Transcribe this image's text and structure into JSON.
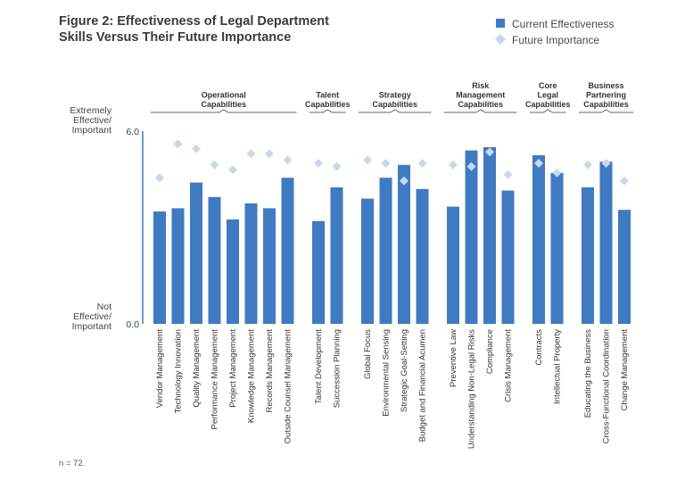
{
  "title_line1": "Figure 2: Effectiveness of Legal Department",
  "title_line2": "Skills Versus Their Future Importance",
  "note": "n = 72.",
  "colors": {
    "bar": "#3f7ac3",
    "diamond": "#c6d8ee",
    "axis": "#3f7ac3",
    "bracket": "#666666"
  },
  "chart_data": {
    "type": "bar",
    "ylim": [
      0,
      6
    ],
    "yticks": [
      {
        "value": 6,
        "label": "6.0",
        "lines": [
          "Extremely",
          "Effective/",
          "Important"
        ]
      },
      {
        "value": 0,
        "label": "0.0",
        "lines": [
          "Not",
          "Effective/",
          "Important"
        ]
      }
    ],
    "series": [
      {
        "name": "Current Effectiveness",
        "marker": "bar"
      },
      {
        "name": "Future Importance",
        "marker": "diamond"
      }
    ],
    "groups": [
      {
        "label": [
          "Operational",
          "Capabilities"
        ],
        "items": [
          {
            "category": "Vendor Management",
            "current": 3.5,
            "future": 4.55
          },
          {
            "category": "Technology Innovation",
            "current": 3.6,
            "future": 5.6
          },
          {
            "category": "Quality Management",
            "current": 4.4,
            "future": 5.45
          },
          {
            "category": "Performance Management",
            "current": 3.95,
            "future": 4.95
          },
          {
            "category": "Project Management",
            "current": 3.25,
            "future": 4.8
          },
          {
            "category": "Knowledge Management",
            "current": 3.75,
            "future": 5.3
          },
          {
            "category": "Records Management",
            "current": 3.6,
            "future": 5.3
          },
          {
            "category": "Outside Counsel Management",
            "current": 4.55,
            "future": 5.1
          }
        ]
      },
      {
        "label": [
          "Talent",
          "Capabilities"
        ],
        "items": [
          {
            "category": "Talent Development",
            "current": 3.2,
            "future": 5.0
          },
          {
            "category": "Succession Planning",
            "current": 4.25,
            "future": 4.9
          }
        ]
      },
      {
        "label": [
          "Strategy",
          "Capabilities"
        ],
        "items": [
          {
            "category": "Global Focus",
            "current": 3.9,
            "future": 5.1
          },
          {
            "category": "Environmental Sensing",
            "current": 4.55,
            "future": 5.0
          },
          {
            "category": "Strategic Goal-Setting",
            "current": 4.95,
            "future": 4.45
          },
          {
            "category": "Budget and Financial Acumen",
            "current": 4.2,
            "future": 5.0
          }
        ]
      },
      {
        "label": [
          "Risk",
          "Management",
          "Capabilities"
        ],
        "items": [
          {
            "category": "Preventive Law",
            "current": 3.65,
            "future": 4.95
          },
          {
            "category": "Understanding Non-Legal Risks",
            "current": 5.4,
            "future": 4.9
          },
          {
            "category": "Compliance",
            "current": 5.5,
            "future": 5.35
          },
          {
            "category": "Crisis Management",
            "current": 4.15,
            "future": 4.65
          }
        ]
      },
      {
        "label": [
          "Core",
          "Legal",
          "Capabilities"
        ],
        "items": [
          {
            "category": "Contracts",
            "current": 5.25,
            "future": 5.0
          },
          {
            "category": "Intellectual Property",
            "current": 4.7,
            "future": 4.7
          }
        ]
      },
      {
        "label": [
          "Business",
          "Partnering",
          "Capabilities"
        ],
        "items": [
          {
            "category": "Educating the Business",
            "current": 4.25,
            "future": 4.95
          },
          {
            "category": "Cross-Functional Coordination",
            "current": 5.05,
            "future": 5.0
          },
          {
            "category": "Change Management",
            "current": 3.55,
            "future": 4.45
          }
        ]
      }
    ]
  }
}
